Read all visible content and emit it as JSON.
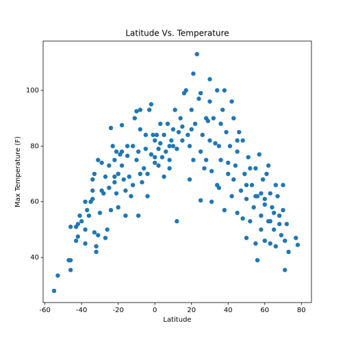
{
  "chart_data": {
    "type": "scatter",
    "title": "Latitude Vs. Temperature",
    "xlabel": "Latitude",
    "ylabel": "Max Temperature (F)",
    "color": "#1f77b4",
    "xlim": [
      -61,
      85.5
    ],
    "ylim": [
      23.8,
      117.7
    ],
    "xticks": [
      -60,
      -40,
      -20,
      0,
      20,
      40,
      60,
      80
    ],
    "yticks": [
      40,
      60,
      80,
      100
    ],
    "x": [
      -55,
      -53,
      -47,
      -46,
      -46,
      -46,
      -43,
      -42,
      -42,
      -41,
      -40,
      -38,
      -38,
      -37,
      -36,
      -35,
      -34,
      -34,
      -34,
      -33,
      -33,
      -32,
      -32,
      -31,
      -31,
      -29,
      -29,
      -28,
      -27,
      -26,
      -25,
      -25,
      -24,
      -24,
      -23,
      -22,
      -22,
      -21,
      -21,
      -20,
      -20,
      -19,
      -18,
      -18,
      -17,
      -16,
      -16,
      -15,
      -14,
      -13,
      -12,
      -12,
      -11,
      -10,
      -10,
      -9,
      -9,
      -8,
      -8,
      -7,
      -6,
      -5,
      -4,
      -4,
      -3,
      -2,
      -2,
      -1,
      0,
      0,
      1,
      2,
      2,
      3,
      4,
      5,
      5,
      6,
      7,
      8,
      8,
      9,
      10,
      11,
      12,
      12,
      13,
      14,
      15,
      16,
      17,
      18,
      19,
      19,
      20,
      21,
      21,
      22,
      23,
      24,
      25,
      25,
      26,
      27,
      28,
      29,
      30,
      30,
      31,
      31,
      32,
      33,
      34,
      34,
      35,
      36,
      36,
      37,
      38,
      38,
      39,
      40,
      41,
      42,
      42,
      43,
      44,
      45,
      45,
      46,
      47,
      48,
      48,
      49,
      50,
      50,
      51,
      52,
      53,
      54,
      55,
      55,
      56,
      56,
      57,
      58,
      58,
      59,
      60,
      60,
      61,
      62,
      62,
      63,
      63,
      64,
      65,
      66,
      66,
      67,
      68,
      69,
      70,
      70,
      71,
      71,
      72,
      73,
      77,
      78,
      -30,
      -27,
      -15,
      -5,
      3,
      10,
      20,
      28,
      35,
      45,
      52,
      58,
      65,
      -38,
      -18,
      0,
      15,
      25,
      40,
      50,
      60,
      68,
      -22,
      -8,
      8,
      30,
      43,
      55,
      63,
      -43
    ],
    "values": [
      28,
      33.5,
      39,
      39,
      35.5,
      51,
      46,
      47.5,
      52,
      55,
      53,
      50,
      45,
      57,
      55,
      60,
      61,
      64,
      68,
      70,
      49,
      42,
      44,
      48,
      75,
      74,
      64,
      63,
      47,
      50,
      65,
      73,
      86.5,
      57,
      80,
      69,
      67,
      78,
      63,
      58,
      70,
      77,
      78,
      87.5,
      68,
      55,
      64,
      76.5,
      69,
      62,
      66,
      80,
      90,
      92.5,
      75,
      55,
      78,
      86,
      93,
      67,
      72,
      79,
      62,
      70,
      93,
      95,
      77,
      84,
      82,
      76,
      84,
      73,
      79,
      81,
      76,
      84,
      69,
      78,
      88,
      75,
      72,
      82,
      80,
      93,
      53,
      79,
      85,
      90,
      87,
      99,
      100,
      84,
      68,
      80,
      93,
      106,
      75,
      88,
      113,
      97,
      60.5,
      99,
      84,
      72,
      75,
      89,
      104,
      96,
      71,
      60,
      90,
      81,
      100,
      66,
      65,
      88,
      75,
      93,
      100,
      57,
      85,
      70,
      80,
      96,
      62,
      90,
      73,
      56,
      78,
      85,
      64,
      82,
      54,
      70,
      61,
      47,
      76,
      53,
      66,
      58,
      72,
      45,
      62,
      39,
      77,
      55,
      50,
      68,
      61,
      46,
      70,
      53,
      73,
      63,
      45,
      58,
      50,
      66,
      44,
      62,
      55,
      48,
      66,
      57,
      35.5,
      46,
      52,
      42,
      47,
      44.5,
      56,
      69,
      80,
      84,
      88,
      86,
      86,
      90,
      80,
      82,
      72,
      63,
      56,
      60,
      73,
      74,
      82,
      78,
      74,
      66,
      59,
      52,
      75,
      70,
      80,
      82,
      68,
      62,
      53,
      51
    ]
  }
}
